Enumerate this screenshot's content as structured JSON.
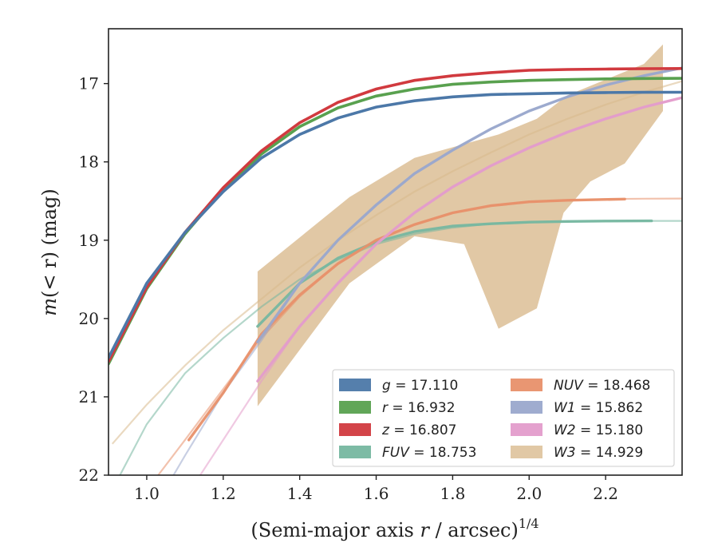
{
  "chart_data": {
    "type": "line",
    "xlabel": "(Semi-major axis r / arcsec)",
    "xlabel_parts": {
      "text": "(Semi-major axis ",
      "var": "r",
      "rest": " / arcsec)",
      "exp": "1/4"
    },
    "ylabel": "m(< r) (mag)",
    "ylabel_parts": {
      "pre": "m",
      "mid": "(< r)",
      "post": " (mag)"
    },
    "xlim": [
      0.9,
      2.4
    ],
    "ylim": [
      22.0,
      16.3
    ],
    "y_inverted": true,
    "x_ticks": [
      1.0,
      1.2,
      1.4,
      1.6,
      1.8,
      2.0,
      2.2
    ],
    "x_tick_labels": [
      "1.0",
      "1.2",
      "1.4",
      "1.6",
      "1.8",
      "2.0",
      "2.2"
    ],
    "y_ticks": [
      17,
      18,
      19,
      20,
      21,
      22
    ],
    "y_tick_labels": [
      "17",
      "18",
      "19",
      "20",
      "21",
      "22"
    ],
    "grid": false,
    "legend_position": "lower-right",
    "series": [
      {
        "name": "g = 17.110",
        "label_var": "g",
        "label_val": "= 17.110",
        "color": "#4c78a8",
        "band_x": [
          0.9,
          1.0,
          1.1,
          1.2,
          1.3,
          1.4,
          1.5,
          1.6,
          1.7,
          1.8,
          1.9,
          2.0,
          2.1,
          2.2,
          2.3,
          2.4
        ],
        "band_y": [
          20.5,
          19.55,
          18.9,
          18.38,
          17.95,
          17.65,
          17.44,
          17.3,
          17.22,
          17.17,
          17.14,
          17.13,
          17.12,
          17.115,
          17.112,
          17.111
        ],
        "band_end": 2.4,
        "fit_x": [
          0.9,
          1.0,
          1.1,
          1.2,
          1.3,
          1.4,
          1.5,
          1.6,
          1.7,
          1.8,
          1.9,
          2.0,
          2.1,
          2.2,
          2.3,
          2.4
        ],
        "fit_y": [
          20.5,
          19.55,
          18.9,
          18.38,
          17.95,
          17.65,
          17.44,
          17.3,
          17.22,
          17.17,
          17.14,
          17.13,
          17.12,
          17.115,
          17.112,
          17.111
        ]
      },
      {
        "name": "r = 16.932",
        "label_var": "r",
        "label_val": "= 16.932",
        "color": "#59a14f",
        "band_x": [
          0.9,
          1.0,
          1.1,
          1.2,
          1.3,
          1.4,
          1.5,
          1.6,
          1.7,
          1.8,
          1.9,
          2.0,
          2.1,
          2.2,
          2.3,
          2.4
        ],
        "band_y": [
          20.58,
          19.62,
          18.92,
          18.35,
          17.9,
          17.55,
          17.31,
          17.16,
          17.07,
          17.01,
          16.98,
          16.96,
          16.95,
          16.94,
          16.935,
          16.933
        ],
        "band_end": 2.4,
        "fit_x": [],
        "fit_y": []
      },
      {
        "name": "z = 16.807",
        "label_var": "z",
        "label_val": "= 16.807",
        "color": "#d13a3f",
        "band_x": [
          0.9,
          1.0,
          1.1,
          1.2,
          1.3,
          1.4,
          1.5,
          1.6,
          1.7,
          1.8,
          1.9,
          2.0,
          2.1,
          2.2,
          2.3,
          2.4
        ],
        "band_y": [
          20.55,
          19.6,
          18.9,
          18.33,
          17.86,
          17.5,
          17.24,
          17.07,
          16.96,
          16.9,
          16.86,
          16.83,
          16.82,
          16.815,
          16.81,
          16.808
        ],
        "band_end": 2.4,
        "fit_x": [],
        "fit_y": []
      },
      {
        "name": "FUV = 18.753",
        "label_var": "FUV",
        "label_val": "= 18.753",
        "color": "#76b7a0",
        "band_x": [
          1.29,
          1.4,
          1.5,
          1.6,
          1.7,
          1.8,
          1.9,
          2.0,
          2.1,
          2.2,
          2.32
        ],
        "band_y": [
          20.1,
          19.55,
          19.23,
          19.02,
          18.89,
          18.82,
          18.79,
          18.77,
          18.76,
          18.755,
          18.753
        ],
        "band_end": 2.32,
        "fit_x": [
          0.93,
          1.0,
          1.1,
          1.2,
          1.3,
          1.4,
          1.5,
          1.6,
          1.7,
          1.8,
          1.9,
          2.0,
          2.1,
          2.2,
          2.3,
          2.4
        ],
        "fit_y": [
          22.0,
          21.35,
          20.7,
          20.25,
          19.85,
          19.5,
          19.25,
          19.05,
          18.92,
          18.84,
          18.79,
          18.77,
          18.76,
          18.755,
          18.753,
          18.753
        ]
      },
      {
        "name": "NUV = 18.468",
        "label_var": "NUV",
        "label_val": "= 18.468",
        "color": "#e8906a",
        "band_x": [
          1.11,
          1.2,
          1.3,
          1.4,
          1.5,
          1.6,
          1.7,
          1.8,
          1.9,
          2.0,
          2.1,
          2.25
        ],
        "band_y": [
          21.55,
          20.95,
          20.2,
          19.7,
          19.3,
          19.0,
          18.8,
          18.65,
          18.56,
          18.51,
          18.49,
          18.475
        ],
        "band_end": 2.25,
        "fit_x": [
          1.03,
          1.1,
          1.2,
          1.3,
          1.4,
          1.5,
          1.6,
          1.7,
          1.8,
          1.9,
          2.0,
          2.1,
          2.2,
          2.3,
          2.4
        ],
        "fit_y": [
          22.0,
          21.55,
          20.9,
          20.25,
          19.72,
          19.3,
          19.0,
          18.8,
          18.65,
          18.56,
          18.51,
          18.49,
          18.475,
          18.47,
          18.468
        ]
      },
      {
        "name": "W1 = 15.862",
        "label_var": "W1",
        "label_val": "= 15.862",
        "color": "#9aa8cc",
        "band_x": [
          1.29,
          1.4,
          1.5,
          1.6,
          1.7,
          1.8,
          1.9,
          2.0,
          2.1,
          2.2,
          2.3,
          2.4
        ],
        "band_y": [
          20.3,
          19.55,
          19.0,
          18.55,
          18.15,
          17.85,
          17.58,
          17.35,
          17.17,
          17.02,
          16.9,
          16.8
        ],
        "band_end": 2.4,
        "fit_x": [
          1.07,
          1.1,
          1.2,
          1.3,
          1.4,
          1.5,
          1.6,
          1.7,
          1.8,
          1.9,
          2.0,
          2.1,
          2.2,
          2.3,
          2.4
        ],
        "fit_y": [
          22.0,
          21.75,
          20.95,
          20.28,
          19.55,
          19.0,
          18.55,
          18.15,
          17.85,
          17.58,
          17.35,
          17.17,
          17.02,
          16.9,
          16.8
        ]
      },
      {
        "name": "W2 = 15.180",
        "label_var": "W2",
        "label_val": "= 15.180",
        "color": "#e39ccb",
        "band_x": [
          1.29,
          1.4,
          1.5,
          1.6,
          1.7,
          1.8,
          1.9,
          2.0,
          2.1,
          2.2,
          2.3,
          2.4
        ],
        "band_y": [
          20.8,
          20.1,
          19.55,
          19.05,
          18.65,
          18.32,
          18.05,
          17.82,
          17.62,
          17.45,
          17.3,
          17.18
        ],
        "band_end": 2.4,
        "fit_x": [
          1.14,
          1.2,
          1.3,
          1.4,
          1.5,
          1.6,
          1.7,
          1.8,
          1.9,
          2.0,
          2.1,
          2.2,
          2.3,
          2.4
        ],
        "fit_y": [
          22.0,
          21.55,
          20.8,
          20.1,
          19.55,
          19.05,
          18.65,
          18.32,
          18.05,
          17.82,
          17.62,
          17.45,
          17.3,
          17.18
        ]
      },
      {
        "name": "W3 = 14.929",
        "label_var": "W3",
        "label_val": "= 14.929",
        "color": "#d8b98c",
        "upper_x": [
          1.29,
          1.53,
          1.7,
          1.92,
          2.02,
          2.1,
          2.2,
          2.3,
          2.35
        ],
        "upper_y": [
          19.4,
          18.45,
          17.95,
          17.65,
          17.45,
          17.15,
          16.95,
          16.75,
          16.5
        ],
        "lower_x": [
          1.29,
          1.53,
          1.7,
          1.83,
          1.92,
          2.02,
          2.09,
          2.16,
          2.25,
          2.35
        ],
        "lower_y": [
          21.12,
          19.55,
          18.95,
          19.05,
          20.13,
          19.87,
          18.65,
          18.25,
          18.02,
          17.35
        ],
        "fit_x": [
          0.91,
          1.0,
          1.1,
          1.2,
          1.3,
          1.4,
          1.5,
          1.6,
          1.7,
          1.8,
          1.9,
          2.0,
          2.1,
          2.2,
          2.3,
          2.4
        ],
        "fit_y": [
          21.6,
          21.1,
          20.6,
          20.15,
          19.75,
          19.35,
          19.0,
          18.68,
          18.38,
          18.12,
          17.88,
          17.65,
          17.45,
          17.27,
          17.11,
          16.97
        ]
      }
    ]
  }
}
